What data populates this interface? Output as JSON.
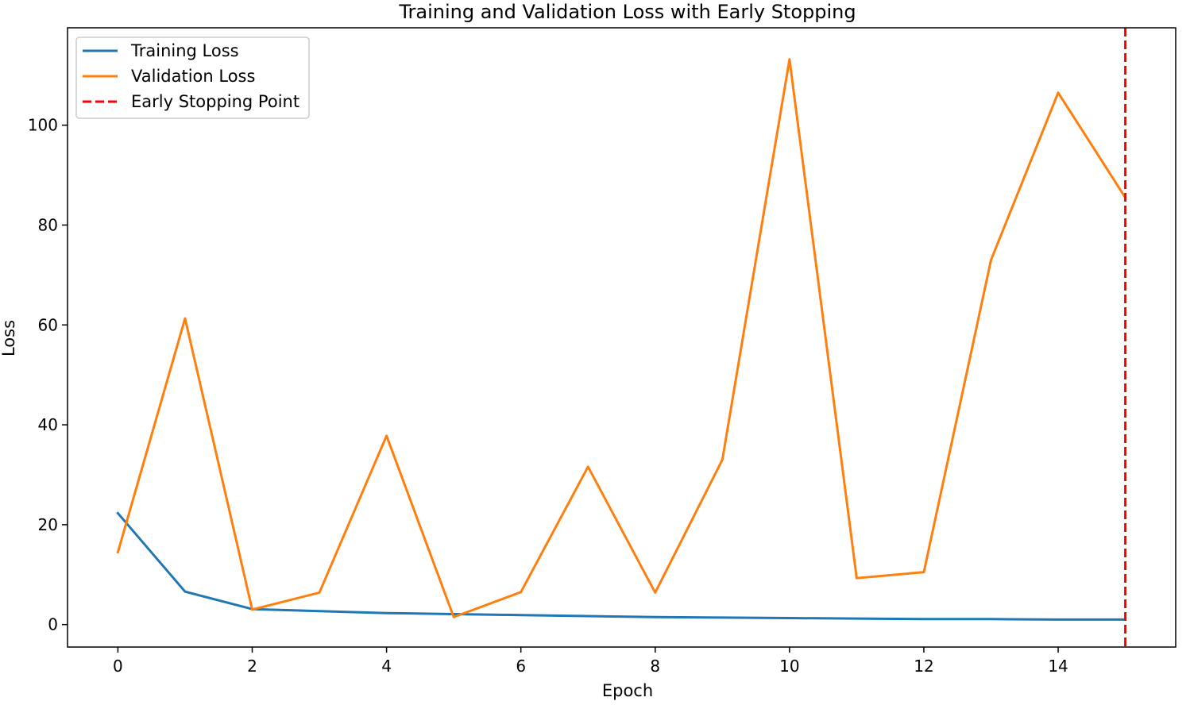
{
  "chart_data": {
    "type": "line",
    "title": "Training and Validation Loss with Early Stopping",
    "xlabel": "Epoch",
    "ylabel": "Loss",
    "xlim": [
      -0.75,
      15.75
    ],
    "ylim": [
      -4.5,
      119.5
    ],
    "x_ticks": [
      0,
      2,
      4,
      6,
      8,
      10,
      12,
      14
    ],
    "y_ticks": [
      0,
      20,
      40,
      60,
      80,
      100
    ],
    "grid": false,
    "legend_position": "upper-left",
    "series": [
      {
        "name": "Training Loss",
        "color": "#1f77b4",
        "style": "solid",
        "x": [
          0,
          1,
          2,
          3,
          4,
          5,
          6,
          7,
          8,
          9,
          10,
          11,
          12,
          13,
          14,
          15
        ],
        "y": [
          22.3,
          6.6,
          3.1,
          2.7,
          2.3,
          2.1,
          1.9,
          1.7,
          1.5,
          1.4,
          1.3,
          1.2,
          1.1,
          1.1,
          1.0,
          1.0
        ]
      },
      {
        "name": "Validation Loss",
        "color": "#ff7f0e",
        "style": "solid",
        "x": [
          0,
          1,
          2,
          3,
          4,
          5,
          6,
          7,
          8,
          9,
          10,
          11,
          12,
          13,
          14,
          15
        ],
        "y": [
          14.5,
          61.3,
          3.0,
          6.4,
          37.8,
          1.5,
          6.5,
          31.6,
          6.4,
          33.0,
          113.2,
          9.3,
          10.5,
          73.0,
          106.5,
          85.5
        ]
      }
    ],
    "vlines": [
      {
        "name": "Early Stopping Point",
        "color": "#ff0000",
        "style": "dashed",
        "x": 15
      }
    ]
  }
}
